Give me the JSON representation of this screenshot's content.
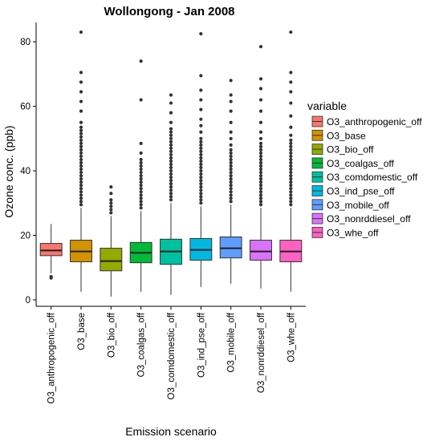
{
  "chart_data": {
    "type": "box",
    "title": "Wollongong  -  Jan 2008",
    "xlabel": "Emission scenario",
    "ylabel": "Ozone conc. (ppb)",
    "ylim": [
      -2,
      86
    ],
    "yticks": [
      0,
      20,
      40,
      60,
      80
    ],
    "grid": false,
    "legend": {
      "title": "variable",
      "position": "right"
    },
    "series": [
      {
        "name": "O3_anthropogenic_off",
        "color": "#F8766D",
        "q1": 13.7,
        "median": 15.3,
        "q3": 17.5,
        "whisker_low": 8.2,
        "whisker_high": 23.5,
        "outliers": [
          6.8,
          7.2
        ]
      },
      {
        "name": "O3_base",
        "color": "#D39200",
        "q1": 11.8,
        "median": 15.0,
        "q3": 18.5,
        "whisker_low": 2.5,
        "whisker_high": 28.5,
        "outliers": [
          29.5,
          30.5,
          31.5,
          32.5,
          33.5,
          34.5,
          35.5,
          36.5,
          37.5,
          38.5,
          39.5,
          40.5,
          41.5,
          42.5,
          43.5,
          44.5,
          45.5,
          46.5,
          47.5,
          48.5,
          49.5,
          50.5,
          51.5,
          52.5,
          53.5,
          55.0,
          58.5,
          61.5,
          64.5,
          67.5,
          70.5,
          83.0
        ]
      },
      {
        "name": "O3_bio_off",
        "color": "#93AA00",
        "q1": 9.0,
        "median": 12.0,
        "q3": 16.0,
        "whisker_low": 1.0,
        "whisker_high": 26.0,
        "outliers": [
          27.0,
          28.0,
          29.0,
          30.0,
          31.0,
          33.0,
          35.0
        ]
      },
      {
        "name": "O3_coalgas_off",
        "color": "#00BA38",
        "q1": 11.5,
        "median": 14.6,
        "q3": 17.8,
        "whisker_low": 2.5,
        "whisker_high": 27.5,
        "outliers": [
          28.5,
          29.5,
          30.5,
          31.5,
          32.5,
          33.5,
          34.5,
          35.5,
          36.5,
          37.5,
          38.5,
          39.5,
          40.5,
          41.5,
          42.5,
          43.5,
          45.5,
          48.5,
          62.0,
          74.0
        ]
      },
      {
        "name": "O3_comdomestic_off",
        "color": "#00C19F",
        "q1": 11.0,
        "median": 15.0,
        "q3": 18.8,
        "whisker_low": 1.5,
        "whisker_high": 30.0,
        "outliers": [
          31.0,
          32.0,
          33.0,
          34.0,
          35.0,
          36.0,
          37.0,
          38.0,
          39.0,
          40.0,
          41.0,
          42.0,
          43.0,
          44.0,
          45.0,
          46.0,
          47.0,
          48.0,
          49.0,
          50.0,
          51.0,
          52.0,
          53.0,
          55.0,
          58.0,
          61.0,
          63.5
        ]
      },
      {
        "name": "O3_ind_pse_off",
        "color": "#00B9E3",
        "q1": 12.3,
        "median": 15.5,
        "q3": 19.0,
        "whisker_low": 4.0,
        "whisker_high": 29.0,
        "outliers": [
          30.0,
          31.0,
          32.0,
          33.0,
          34.0,
          35.0,
          36.0,
          37.0,
          38.0,
          39.0,
          40.0,
          41.0,
          42.0,
          43.0,
          44.0,
          45.0,
          46.0,
          47.0,
          48.0,
          49.0,
          50.0,
          52.0,
          54.0,
          56.0,
          59.0,
          62.0,
          65.0,
          69.5,
          82.5
        ]
      },
      {
        "name": "O3_mobile_off",
        "color": "#619CFF",
        "q1": 13.0,
        "median": 16.0,
        "q3": 19.5,
        "whisker_low": 5.0,
        "whisker_high": 29.5,
        "outliers": [
          30.5,
          31.5,
          32.5,
          33.5,
          34.5,
          35.5,
          36.5,
          37.5,
          38.5,
          39.5,
          40.5,
          41.5,
          42.5,
          43.5,
          44.5,
          45.5,
          46.5,
          48.0,
          50.0,
          52.0,
          55.0,
          58.5,
          61.5,
          63.5,
          68.0
        ]
      },
      {
        "name": "O3_nonrddiesel_off",
        "color": "#DB72FB",
        "q1": 12.3,
        "median": 15.0,
        "q3": 18.5,
        "whisker_low": 3.5,
        "whisker_high": 28.5,
        "outliers": [
          29.5,
          30.5,
          31.5,
          32.5,
          33.5,
          34.5,
          35.5,
          36.5,
          37.5,
          38.5,
          39.5,
          40.5,
          41.5,
          42.5,
          43.5,
          44.5,
          45.5,
          46.5,
          47.5,
          48.5,
          50.0,
          52.0,
          55.0,
          58.5,
          62.0,
          65.5,
          68.5,
          78.5
        ]
      },
      {
        "name": "O3_whe_off",
        "color": "#FF61C3",
        "q1": 11.8,
        "median": 15.0,
        "q3": 18.5,
        "whisker_low": 2.5,
        "whisker_high": 28.5,
        "outliers": [
          29.5,
          30.5,
          31.5,
          32.5,
          33.5,
          34.5,
          35.5,
          36.5,
          37.5,
          38.5,
          39.5,
          40.5,
          41.5,
          42.5,
          43.5,
          44.5,
          45.5,
          46.5,
          47.5,
          48.5,
          49.5,
          51.0,
          53.5,
          57.0,
          61.0,
          64.5,
          67.5,
          70.5,
          83.0
        ]
      }
    ]
  }
}
